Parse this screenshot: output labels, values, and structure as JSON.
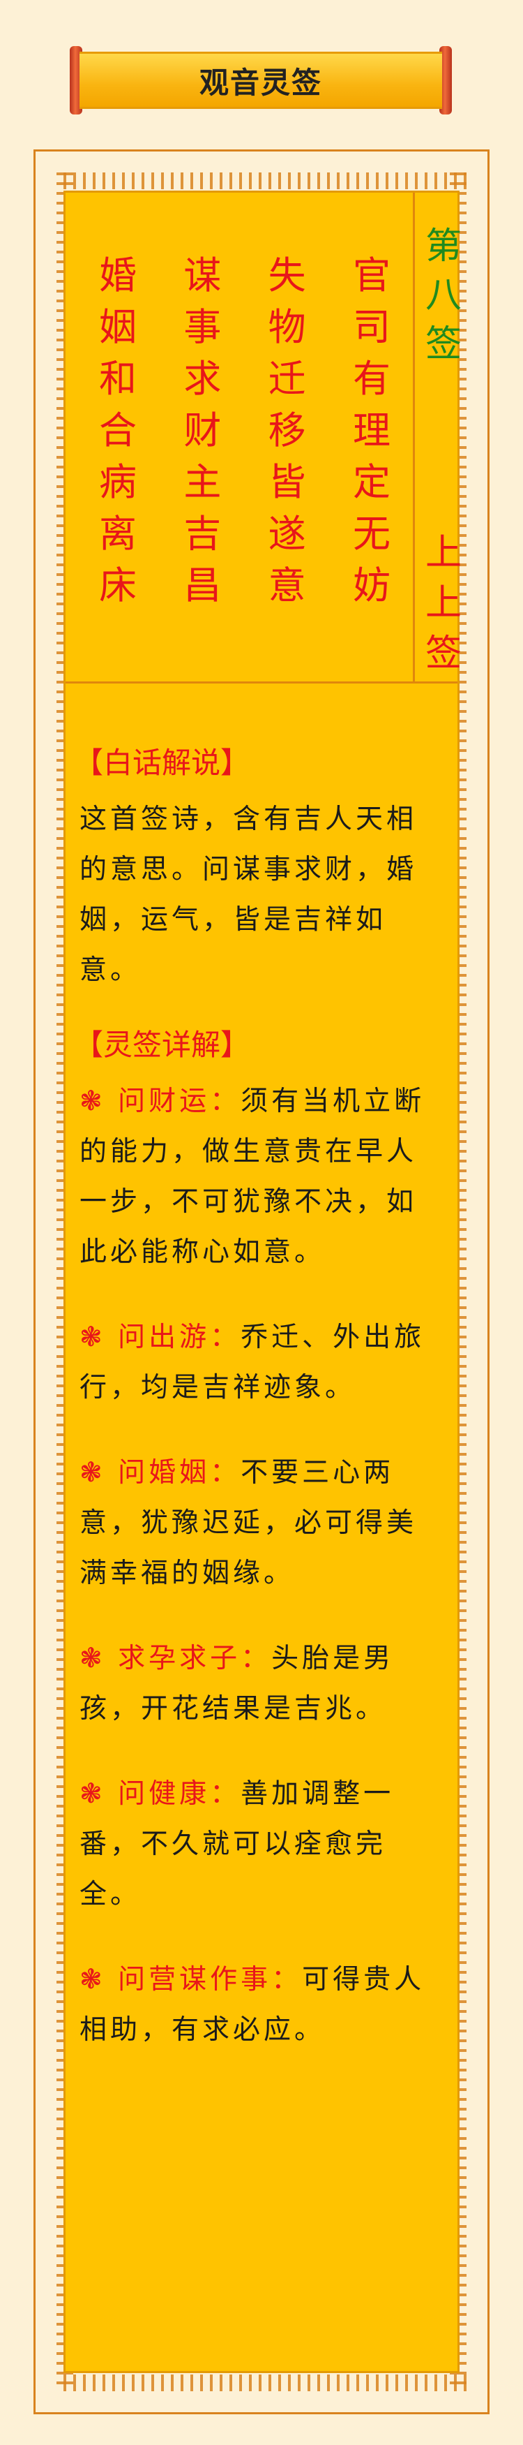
{
  "banner": {
    "title": "观音灵签"
  },
  "poem": {
    "columns": [
      [
        "官",
        "司",
        "有",
        "理",
        "定",
        "无",
        "妨"
      ],
      [
        "失",
        "物",
        "迁",
        "移",
        "皆",
        "遂",
        "意"
      ],
      [
        "谋",
        "事",
        "求",
        "财",
        "主",
        "吉",
        "昌"
      ],
      [
        "婚",
        "姻",
        "和",
        "合",
        "病",
        "离",
        "床"
      ]
    ],
    "number": [
      "第",
      "八",
      "签"
    ],
    "grade": [
      "上",
      "上",
      "签"
    ]
  },
  "vernacular": {
    "heading": "【白话解说】",
    "text": "这首签诗，含有吉人天相的意思。问谋事求财，婚姻，运气，皆是吉祥如意。"
  },
  "details": {
    "heading": "【灵签详解】",
    "items": [
      {
        "label": "❃ 问财运：",
        "text": "须有当机立断的能力，做生意贵在早人一步，不可犹豫不决，如此必能称心如意。"
      },
      {
        "label": "❃ 问出游：",
        "text": "乔迁、外出旅行，均是吉祥迹象。"
      },
      {
        "label": "❃ 问婚姻：",
        "text": "不要三心两意，犹豫迟延，必可得美满幸福的姻缘。"
      },
      {
        "label": "❃ 求孕求子：",
        "text": "头胎是男孩，开花结果是吉兆。"
      },
      {
        "label": "❃ 问健康：",
        "text": "善加调整一番，不久就可以痊愈完全。"
      },
      {
        "label": "❃ 问营谋作事：",
        "text": "可得贵人相助，有求必应。"
      }
    ]
  },
  "colors": {
    "accent_red": "#e8161a",
    "green": "#1f8a1f",
    "panel": "#ffc300",
    "border": "#d9831e",
    "page": "#fdf1d6"
  }
}
